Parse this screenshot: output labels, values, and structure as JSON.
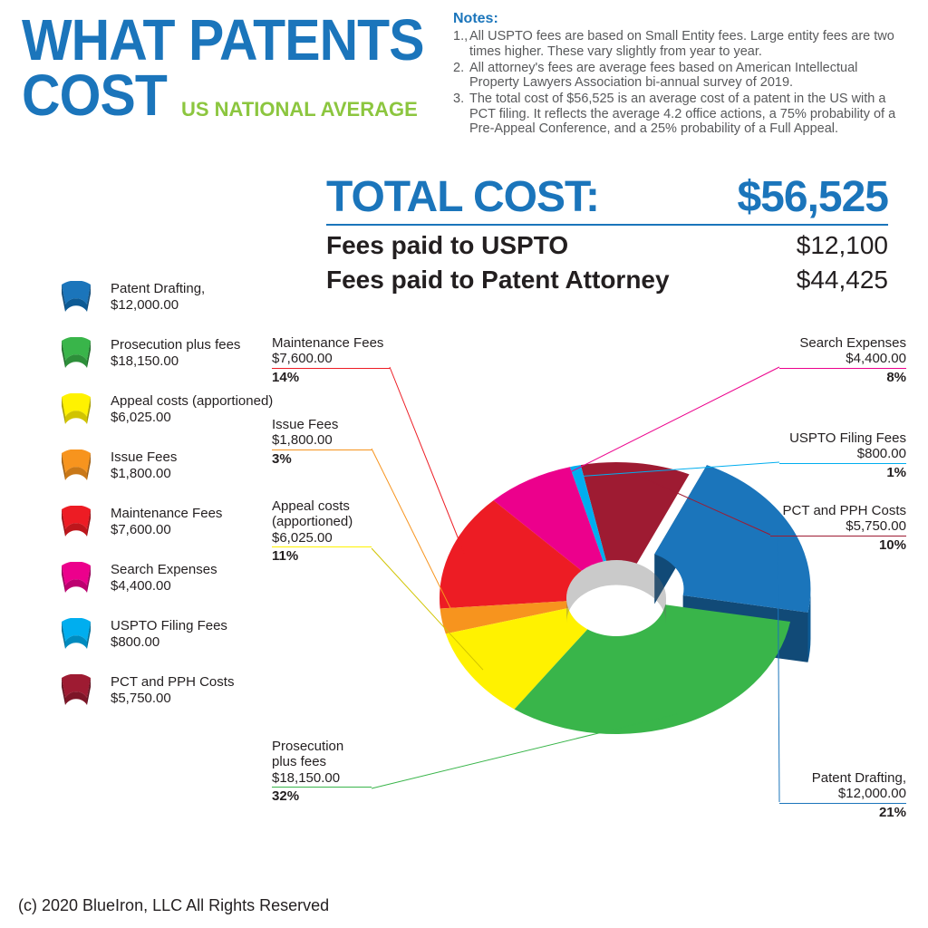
{
  "title_line1": "WHAT PATENTS",
  "title_line2": "COST",
  "subtitle": "US NATIONAL AVERAGE",
  "notes_title": "Notes:",
  "notes": [
    "All USPTO fees are based on Small Entity fees. Large entity fees are two times higher.  These vary slightly from year to year.",
    "All attorney's fees are average fees based on American Intellectual Property Lawyers Association bi-annual survey of 2019.",
    "The total cost of $56,525 is an average cost of a patent in the US with a PCT filing. It reflects the average 4.2 office actions, a 75% probability of a Pre-Appeal Conference, and a 25% probability of a Full Appeal."
  ],
  "total_label": "TOTAL COST:",
  "total_value": "$56,525",
  "fees": [
    {
      "label": "Fees paid to USPTO",
      "value": "$12,100"
    },
    {
      "label": "Fees paid to Patent Attorney",
      "value": "$44,425"
    }
  ],
  "copyright": "(c) 2020 BlueIron, LLC  All Rights Reserved",
  "chart": {
    "type": "pie",
    "background_color": "#ffffff",
    "accent_color": "#1b75bb",
    "slices": [
      {
        "name": "Patent Drafting,",
        "amount": "$12,000.00",
        "pct": 21,
        "color": "#1b75bb",
        "dark": "#0d5a94",
        "side": "#114a77"
      },
      {
        "name": "Prosecution plus fees",
        "amount": "$18,150.00",
        "pct": 32,
        "color": "#39b54a",
        "dark": "#2d8f3a",
        "side": "#1f6b2a"
      },
      {
        "name": "Appeal costs (apportioned)",
        "amount": "$6,025.00",
        "pct": 11,
        "color": "#fff200",
        "dark": "#d1c400",
        "side": "#a89e00"
      },
      {
        "name": "Issue Fees",
        "amount": "$1,800.00",
        "pct": 3,
        "color": "#f7941e",
        "dark": "#c97818",
        "side": "#a05f12"
      },
      {
        "name": "Maintenance Fees",
        "amount": "$7,600.00",
        "pct": 14,
        "color": "#ed1c24",
        "dark": "#be161c",
        "side": "#961015"
      },
      {
        "name": "Search Expenses",
        "amount": "$4,400.00",
        "pct": 8,
        "color": "#ec008c",
        "dark": "#bd0070",
        "side": "#950058"
      },
      {
        "name": "USPTO Filing Fees",
        "amount": "$800.00",
        "pct": 1,
        "color": "#00aeef",
        "dark": "#008bbf",
        "side": "#006e97"
      },
      {
        "name": "PCT and PPH Costs",
        "amount": "$5,750.00",
        "pct": 10,
        "color": "#9e1b32",
        "dark": "#7d1527",
        "side": "#5e0f1d"
      }
    ]
  }
}
